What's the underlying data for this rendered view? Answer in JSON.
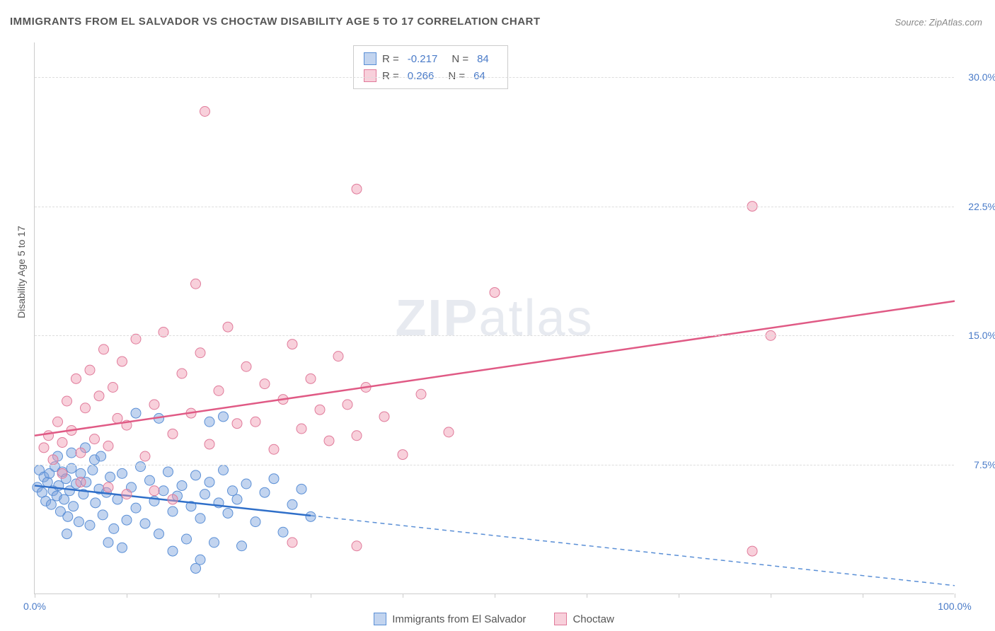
{
  "title": "IMMIGRANTS FROM EL SALVADOR VS CHOCTAW DISABILITY AGE 5 TO 17 CORRELATION CHART",
  "source": "Source: ZipAtlas.com",
  "y_axis_label": "Disability Age 5 to 17",
  "watermark": {
    "left": "ZIP",
    "right": "atlas"
  },
  "chart": {
    "type": "scatter",
    "xlim": [
      0,
      100
    ],
    "ylim": [
      0,
      32
    ],
    "x_ticks": [
      0,
      10,
      20,
      30,
      40,
      50,
      60,
      70,
      80,
      90,
      100
    ],
    "x_tick_labels": {
      "0": "0.0%",
      "100": "100.0%"
    },
    "y_ticks": [
      7.5,
      15.0,
      22.5,
      30.0
    ],
    "y_tick_labels": [
      "7.5%",
      "15.0%",
      "22.5%",
      "30.0%"
    ],
    "grid_color": "#dddddd",
    "background_color": "#ffffff",
    "series": [
      {
        "name": "Immigrants from El Salvador",
        "marker_fill": "rgba(120,160,220,0.45)",
        "marker_stroke": "#5a8fd6",
        "line_color": "#2f6fc9",
        "dash_color": "#5a8fd6",
        "R": "-0.217",
        "N": "84",
        "trend": {
          "x1": 0,
          "y1": 6.3,
          "x2": 100,
          "y2": 0.5,
          "solid_until_x": 30
        },
        "points": [
          [
            0.3,
            6.2
          ],
          [
            0.5,
            7.2
          ],
          [
            0.8,
            5.9
          ],
          [
            1.0,
            6.8
          ],
          [
            1.2,
            5.4
          ],
          [
            1.4,
            6.5
          ],
          [
            1.6,
            7.0
          ],
          [
            1.8,
            5.2
          ],
          [
            2.0,
            6.0
          ],
          [
            2.2,
            7.4
          ],
          [
            2.4,
            5.7
          ],
          [
            2.6,
            6.3
          ],
          [
            2.8,
            4.8
          ],
          [
            3.0,
            7.1
          ],
          [
            3.2,
            5.5
          ],
          [
            3.4,
            6.7
          ],
          [
            3.6,
            4.5
          ],
          [
            3.8,
            6.0
          ],
          [
            4.0,
            7.3
          ],
          [
            4.2,
            5.1
          ],
          [
            4.5,
            6.4
          ],
          [
            4.8,
            4.2
          ],
          [
            5.0,
            7.0
          ],
          [
            5.3,
            5.8
          ],
          [
            5.6,
            6.5
          ],
          [
            6.0,
            4.0
          ],
          [
            6.3,
            7.2
          ],
          [
            6.6,
            5.3
          ],
          [
            7.0,
            6.1
          ],
          [
            7.4,
            4.6
          ],
          [
            7.8,
            5.9
          ],
          [
            8.2,
            6.8
          ],
          [
            8.6,
            3.8
          ],
          [
            9.0,
            5.5
          ],
          [
            9.5,
            7.0
          ],
          [
            10.0,
            4.3
          ],
          [
            10.5,
            6.2
          ],
          [
            11.0,
            5.0
          ],
          [
            11.5,
            7.4
          ],
          [
            12.0,
            4.1
          ],
          [
            12.5,
            6.6
          ],
          [
            13.0,
            5.4
          ],
          [
            13.5,
            3.5
          ],
          [
            14.0,
            6.0
          ],
          [
            14.5,
            7.1
          ],
          [
            15.0,
            4.8
          ],
          [
            15.5,
            5.7
          ],
          [
            16.0,
            6.3
          ],
          [
            16.5,
            3.2
          ],
          [
            17.0,
            5.1
          ],
          [
            17.5,
            6.9
          ],
          [
            18.0,
            4.4
          ],
          [
            18.5,
            5.8
          ],
          [
            19.0,
            6.5
          ],
          [
            19.5,
            3.0
          ],
          [
            20.0,
            5.3
          ],
          [
            20.5,
            7.2
          ],
          [
            21.0,
            4.7
          ],
          [
            21.5,
            6.0
          ],
          [
            22.0,
            5.5
          ],
          [
            22.5,
            2.8
          ],
          [
            23.0,
            6.4
          ],
          [
            24.0,
            4.2
          ],
          [
            25.0,
            5.9
          ],
          [
            26.0,
            6.7
          ],
          [
            27.0,
            3.6
          ],
          [
            28.0,
            5.2
          ],
          [
            29.0,
            6.1
          ],
          [
            30.0,
            4.5
          ],
          [
            15.0,
            2.5
          ],
          [
            18.0,
            2.0
          ],
          [
            11.0,
            10.5
          ],
          [
            13.5,
            10.2
          ],
          [
            17.5,
            1.5
          ],
          [
            19.0,
            10.0
          ],
          [
            20.5,
            10.3
          ],
          [
            8.0,
            3.0
          ],
          [
            9.5,
            2.7
          ],
          [
            6.5,
            7.8
          ],
          [
            7.2,
            8.0
          ],
          [
            4.0,
            8.2
          ],
          [
            5.5,
            8.5
          ],
          [
            2.5,
            8.0
          ],
          [
            3.5,
            3.5
          ]
        ]
      },
      {
        "name": "Choctaw",
        "marker_fill": "rgba(240,150,175,0.45)",
        "marker_stroke": "#e07a9a",
        "line_color": "#e05a85",
        "R": "0.266",
        "N": "64",
        "trend": {
          "x1": 0,
          "y1": 9.2,
          "x2": 100,
          "y2": 17.0,
          "solid_until_x": 100
        },
        "points": [
          [
            1.0,
            8.5
          ],
          [
            1.5,
            9.2
          ],
          [
            2.0,
            7.8
          ],
          [
            2.5,
            10.0
          ],
          [
            3.0,
            8.8
          ],
          [
            3.5,
            11.2
          ],
          [
            4.0,
            9.5
          ],
          [
            4.5,
            12.5
          ],
          [
            5.0,
            8.2
          ],
          [
            5.5,
            10.8
          ],
          [
            6.0,
            13.0
          ],
          [
            6.5,
            9.0
          ],
          [
            7.0,
            11.5
          ],
          [
            7.5,
            14.2
          ],
          [
            8.0,
            8.6
          ],
          [
            8.5,
            12.0
          ],
          [
            9.0,
            10.2
          ],
          [
            9.5,
            13.5
          ],
          [
            10.0,
            9.8
          ],
          [
            11.0,
            14.8
          ],
          [
            12.0,
            8.0
          ],
          [
            13.0,
            11.0
          ],
          [
            14.0,
            15.2
          ],
          [
            15.0,
            9.3
          ],
          [
            16.0,
            12.8
          ],
          [
            17.0,
            10.5
          ],
          [
            18.0,
            14.0
          ],
          [
            19.0,
            8.7
          ],
          [
            20.0,
            11.8
          ],
          [
            21.0,
            15.5
          ],
          [
            22.0,
            9.9
          ],
          [
            23.0,
            13.2
          ],
          [
            24.0,
            10.0
          ],
          [
            25.0,
            12.2
          ],
          [
            26.0,
            8.4
          ],
          [
            27.0,
            11.3
          ],
          [
            28.0,
            14.5
          ],
          [
            29.0,
            9.6
          ],
          [
            30.0,
            12.5
          ],
          [
            31.0,
            10.7
          ],
          [
            32.0,
            8.9
          ],
          [
            33.0,
            13.8
          ],
          [
            34.0,
            11.0
          ],
          [
            35.0,
            9.2
          ],
          [
            36.0,
            12.0
          ],
          [
            38.0,
            10.3
          ],
          [
            40.0,
            8.1
          ],
          [
            42.0,
            11.6
          ],
          [
            45.0,
            9.4
          ],
          [
            17.5,
            18.0
          ],
          [
            18.5,
            28.0
          ],
          [
            35.0,
            23.5
          ],
          [
            50.0,
            17.5
          ],
          [
            78.0,
            22.5
          ],
          [
            80.0,
            15.0
          ],
          [
            78.0,
            2.5
          ],
          [
            35.0,
            2.8
          ],
          [
            28.0,
            3.0
          ],
          [
            15.0,
            5.5
          ],
          [
            13.0,
            6.0
          ],
          [
            10.0,
            5.8
          ],
          [
            8.0,
            6.2
          ],
          [
            5.0,
            6.5
          ],
          [
            3.0,
            7.0
          ]
        ]
      }
    ]
  },
  "legend_top": {
    "rows": [
      {
        "swatch_fill": "rgba(120,160,220,0.45)",
        "swatch_stroke": "#5a8fd6",
        "R_label": "R =",
        "R": "-0.217",
        "N_label": "N =",
        "N": "84"
      },
      {
        "swatch_fill": "rgba(240,150,175,0.45)",
        "swatch_stroke": "#e07a9a",
        "R_label": "R =",
        "R": "0.266",
        "N_label": "N =",
        "N": "64"
      }
    ]
  },
  "legend_bottom": {
    "items": [
      {
        "swatch_fill": "rgba(120,160,220,0.45)",
        "swatch_stroke": "#5a8fd6",
        "label": "Immigrants from El Salvador"
      },
      {
        "swatch_fill": "rgba(240,150,175,0.45)",
        "swatch_stroke": "#e07a9a",
        "label": "Choctaw"
      }
    ]
  }
}
